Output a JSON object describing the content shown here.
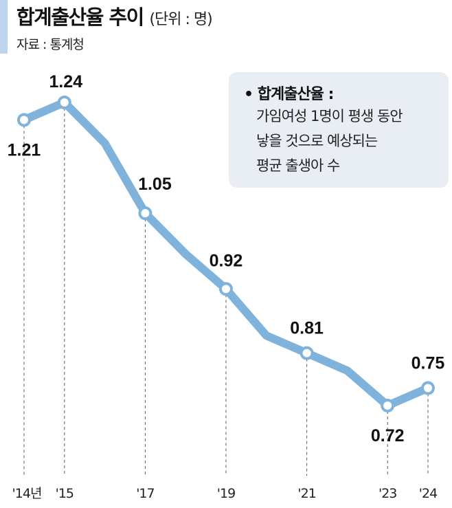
{
  "header": {
    "title": "합계출산율 추이",
    "unit": "(단위 : 명)",
    "source": "자료 : 통계청"
  },
  "note": {
    "heading": "• 합계출산율 :",
    "lines": [
      "가임여성 1명이 평생 동안",
      "낳을 것으로 예상되는",
      "평균 출생아 수"
    ]
  },
  "colors": {
    "line": "#7fb3dc",
    "marker_fill": "#ffffff",
    "note_bg": "#e9eef5",
    "accent_bar": "#bcd5ec"
  },
  "chart_data": {
    "type": "line",
    "title": "합계출산율 추이",
    "ylabel": "명",
    "x": [
      2014,
      2015,
      2016,
      2017,
      2018,
      2019,
      2020,
      2021,
      2022,
      2023,
      2024
    ],
    "values": [
      1.21,
      1.24,
      1.17,
      1.05,
      0.98,
      0.92,
      0.84,
      0.81,
      0.78,
      0.72,
      0.75
    ],
    "labeled_points": [
      {
        "year": 2014,
        "label": "1.21",
        "tick": "'14년"
      },
      {
        "year": 2015,
        "label": "1.24",
        "tick": "'15"
      },
      {
        "year": 2017,
        "label": "1.05",
        "tick": "'17"
      },
      {
        "year": 2019,
        "label": "0.92",
        "tick": "'19"
      },
      {
        "year": 2021,
        "label": "0.81",
        "tick": "'21"
      },
      {
        "year": 2023,
        "label": "0.72",
        "tick": "'23"
      },
      {
        "year": 2024,
        "label": "0.75",
        "tick": "'24"
      }
    ],
    "ylim": [
      0.72,
      1.24
    ],
    "grid": false,
    "legend": "none"
  }
}
